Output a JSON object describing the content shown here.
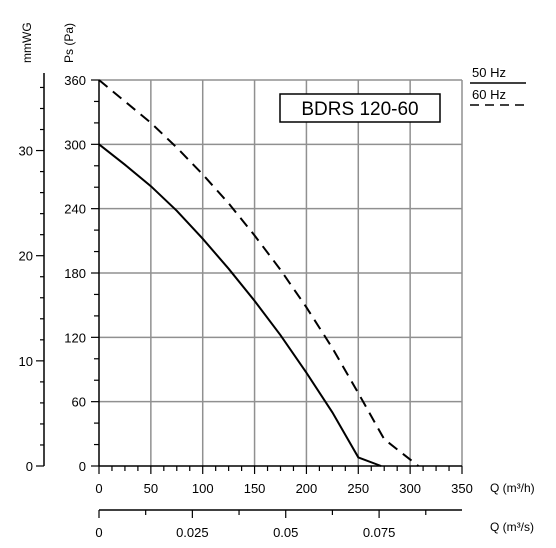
{
  "chart_data": {
    "type": "line",
    "model_label": "BDRS 120-60",
    "left_axis_title": "mmWG",
    "y_axis_title": "Ps (Pa)",
    "x_axis_title": "Q (m³/h)",
    "x2_axis_title": "Q (m³/s)",
    "xlim": [
      0,
      350
    ],
    "ylim": [
      0,
      360
    ],
    "x_ticks": [
      0,
      50,
      100,
      150,
      200,
      250,
      300,
      350
    ],
    "y_ticks": [
      0,
      60,
      120,
      180,
      240,
      300,
      360
    ],
    "mmwg_ticks": [
      0,
      10,
      20,
      30
    ],
    "x2_ticks": [
      {
        "value": 0,
        "label": "0"
      },
      {
        "value": 0.025,
        "label": "0.025"
      },
      {
        "value": 0.05,
        "label": "0.05"
      },
      {
        "value": 0.075,
        "label": "0.075"
      }
    ],
    "grid": true,
    "series": [
      {
        "name": "50 Hz",
        "style": "solid",
        "points": [
          [
            0,
            300
          ],
          [
            25,
            281
          ],
          [
            50,
            261
          ],
          [
            75,
            238
          ],
          [
            100,
            212
          ],
          [
            125,
            184
          ],
          [
            150,
            154
          ],
          [
            175,
            122
          ],
          [
            200,
            87
          ],
          [
            225,
            50
          ],
          [
            250,
            8
          ],
          [
            272,
            0
          ]
        ]
      },
      {
        "name": "60 Hz",
        "style": "dashed",
        "points": [
          [
            0,
            360
          ],
          [
            25,
            340
          ],
          [
            50,
            320
          ],
          [
            75,
            297
          ],
          [
            100,
            272
          ],
          [
            125,
            245
          ],
          [
            150,
            215
          ],
          [
            175,
            183
          ],
          [
            200,
            148
          ],
          [
            225,
            110
          ],
          [
            250,
            68
          ],
          [
            275,
            25
          ],
          [
            308,
            0
          ]
        ]
      }
    ]
  }
}
